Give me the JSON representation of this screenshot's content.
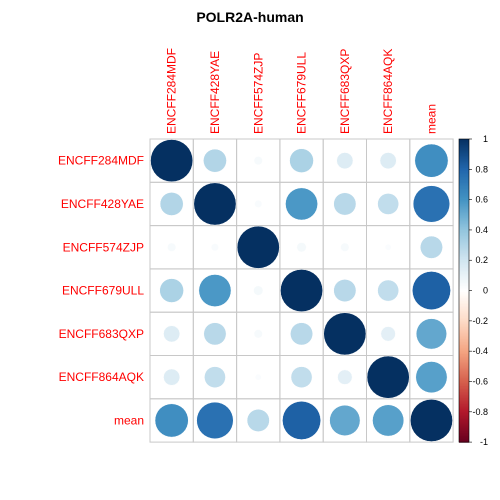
{
  "chart_data": {
    "type": "heatmap",
    "title": "POLR2A-human",
    "row_labels": [
      "ENCFF284MDF",
      "ENCFF428YAE",
      "ENCFF574ZJP",
      "ENCFF679ULL",
      "ENCFF683QXP",
      "ENCFF864AQK",
      "mean"
    ],
    "col_labels": [
      "ENCFF284MDF",
      "ENCFF428YAE",
      "ENCFF574ZJP",
      "ENCFF679ULL",
      "ENCFF683QXP",
      "ENCFF864AQK",
      "mean"
    ],
    "values": [
      [
        1.0,
        0.3,
        0.04,
        0.32,
        0.15,
        0.15,
        0.62
      ],
      [
        0.3,
        1.0,
        0.03,
        0.58,
        0.28,
        0.25,
        0.75
      ],
      [
        0.04,
        0.03,
        1.0,
        0.05,
        0.04,
        0.02,
        0.28
      ],
      [
        0.32,
        0.58,
        0.05,
        1.0,
        0.28,
        0.25,
        0.82
      ],
      [
        0.15,
        0.28,
        0.04,
        0.28,
        1.0,
        0.12,
        0.52
      ],
      [
        0.15,
        0.25,
        0.02,
        0.25,
        0.12,
        1.0,
        0.55
      ],
      [
        0.62,
        0.75,
        0.28,
        0.82,
        0.52,
        0.55,
        1.0
      ]
    ],
    "value_range": [
      -1,
      1
    ],
    "colorbar": {
      "position": "right",
      "ticks": [
        "1",
        "0.8",
        "0.6",
        "0.4",
        "0.2",
        "0",
        "-0.2",
        "-0.4",
        "-0.6",
        "-0.8",
        "-1"
      ]
    },
    "label_color": "#FF0000",
    "grid_color": "#C8C8C8",
    "colorscale": [
      "#67001F",
      "#B2182B",
      "#D6604D",
      "#F4A582",
      "#FDDBC7",
      "#FFFFFF",
      "#D1E5F0",
      "#92C5DE",
      "#4393C3",
      "#2166AC",
      "#053061"
    ]
  }
}
